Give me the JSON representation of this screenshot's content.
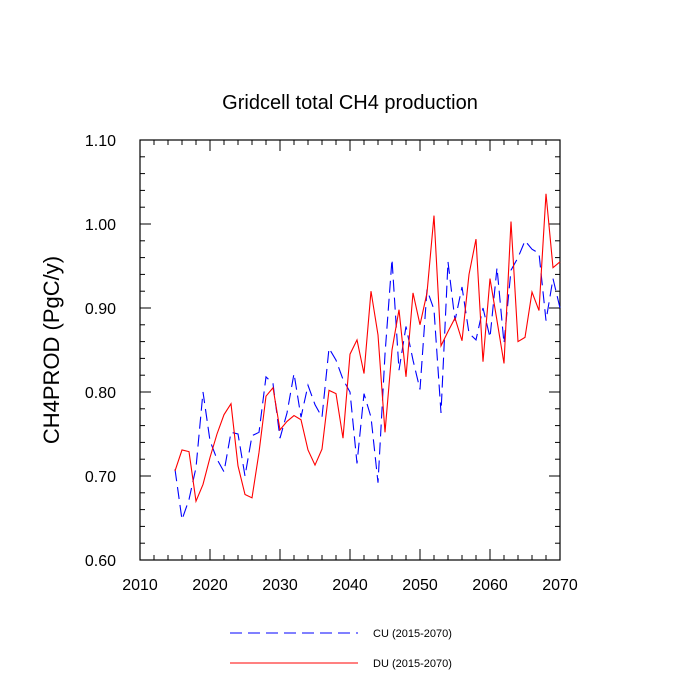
{
  "chart_data": {
    "type": "line",
    "title": "Gridcell total CH4 production",
    "xlabel": "",
    "ylabel": "CH4PROD  (PgC/y)",
    "xlim": [
      2010,
      2070
    ],
    "ylim": [
      0.6,
      1.1
    ],
    "xticks": [
      2010,
      2020,
      2030,
      2040,
      2050,
      2060,
      2070
    ],
    "yticks": [
      0.6,
      0.7,
      0.8,
      0.9,
      1.0,
      1.1
    ],
    "xtick_labels": [
      "2010",
      "2020",
      "2030",
      "2040",
      "2050",
      "2060",
      "2070"
    ],
    "ytick_labels": [
      "0.60",
      "0.70",
      "0.80",
      "0.90",
      "1.00",
      "1.10"
    ],
    "grid": false,
    "legend_position": "bottom",
    "x": [
      2015,
      2016,
      2017,
      2018,
      2019,
      2020,
      2021,
      2022,
      2023,
      2024,
      2025,
      2026,
      2027,
      2028,
      2029,
      2030,
      2031,
      2032,
      2033,
      2034,
      2035,
      2036,
      2037,
      2038,
      2039,
      2040,
      2041,
      2042,
      2043,
      2044,
      2045,
      2046,
      2047,
      2048,
      2049,
      2050,
      2051,
      2052,
      2053,
      2054,
      2055,
      2056,
      2057,
      2058,
      2059,
      2060,
      2061,
      2062,
      2063,
      2064,
      2065,
      2066,
      2067,
      2068,
      2069,
      2070
    ],
    "series": [
      {
        "name": "CU (2015-2070)",
        "color": "#0000ff",
        "dash": "dashed",
        "values": [
          0.708,
          0.648,
          0.672,
          0.71,
          0.8,
          0.742,
          0.72,
          0.705,
          0.752,
          0.75,
          0.7,
          0.748,
          0.752,
          0.818,
          0.81,
          0.745,
          0.775,
          0.822,
          0.77,
          0.808,
          0.785,
          0.77,
          0.852,
          0.838,
          0.815,
          0.8,
          0.715,
          0.798,
          0.77,
          0.692,
          0.845,
          0.958,
          0.826,
          0.878,
          0.838,
          0.803,
          0.922,
          0.898,
          0.775,
          0.955,
          0.885,
          0.925,
          0.87,
          0.862,
          0.9,
          0.865,
          0.948,
          0.858,
          0.945,
          0.96,
          0.98,
          0.97,
          0.965,
          0.885,
          0.935,
          0.9
        ]
      },
      {
        "name": "DU (2015-2070)",
        "color": "#ff0000",
        "dash": "solid",
        "values": [
          0.706,
          0.731,
          0.729,
          0.67,
          0.69,
          0.722,
          0.75,
          0.773,
          0.786,
          0.712,
          0.678,
          0.674,
          0.728,
          0.795,
          0.805,
          0.755,
          0.765,
          0.772,
          0.767,
          0.731,
          0.713,
          0.732,
          0.802,
          0.798,
          0.745,
          0.845,
          0.862,
          0.822,
          0.92,
          0.868,
          0.752,
          0.85,
          0.898,
          0.818,
          0.918,
          0.88,
          0.918,
          1.01,
          0.855,
          0.872,
          0.888,
          0.861,
          0.94,
          0.982,
          0.836,
          0.935,
          0.885,
          0.834,
          1.003,
          0.86,
          0.865,
          0.919,
          0.897,
          1.036,
          0.948,
          0.955
        ]
      }
    ]
  }
}
